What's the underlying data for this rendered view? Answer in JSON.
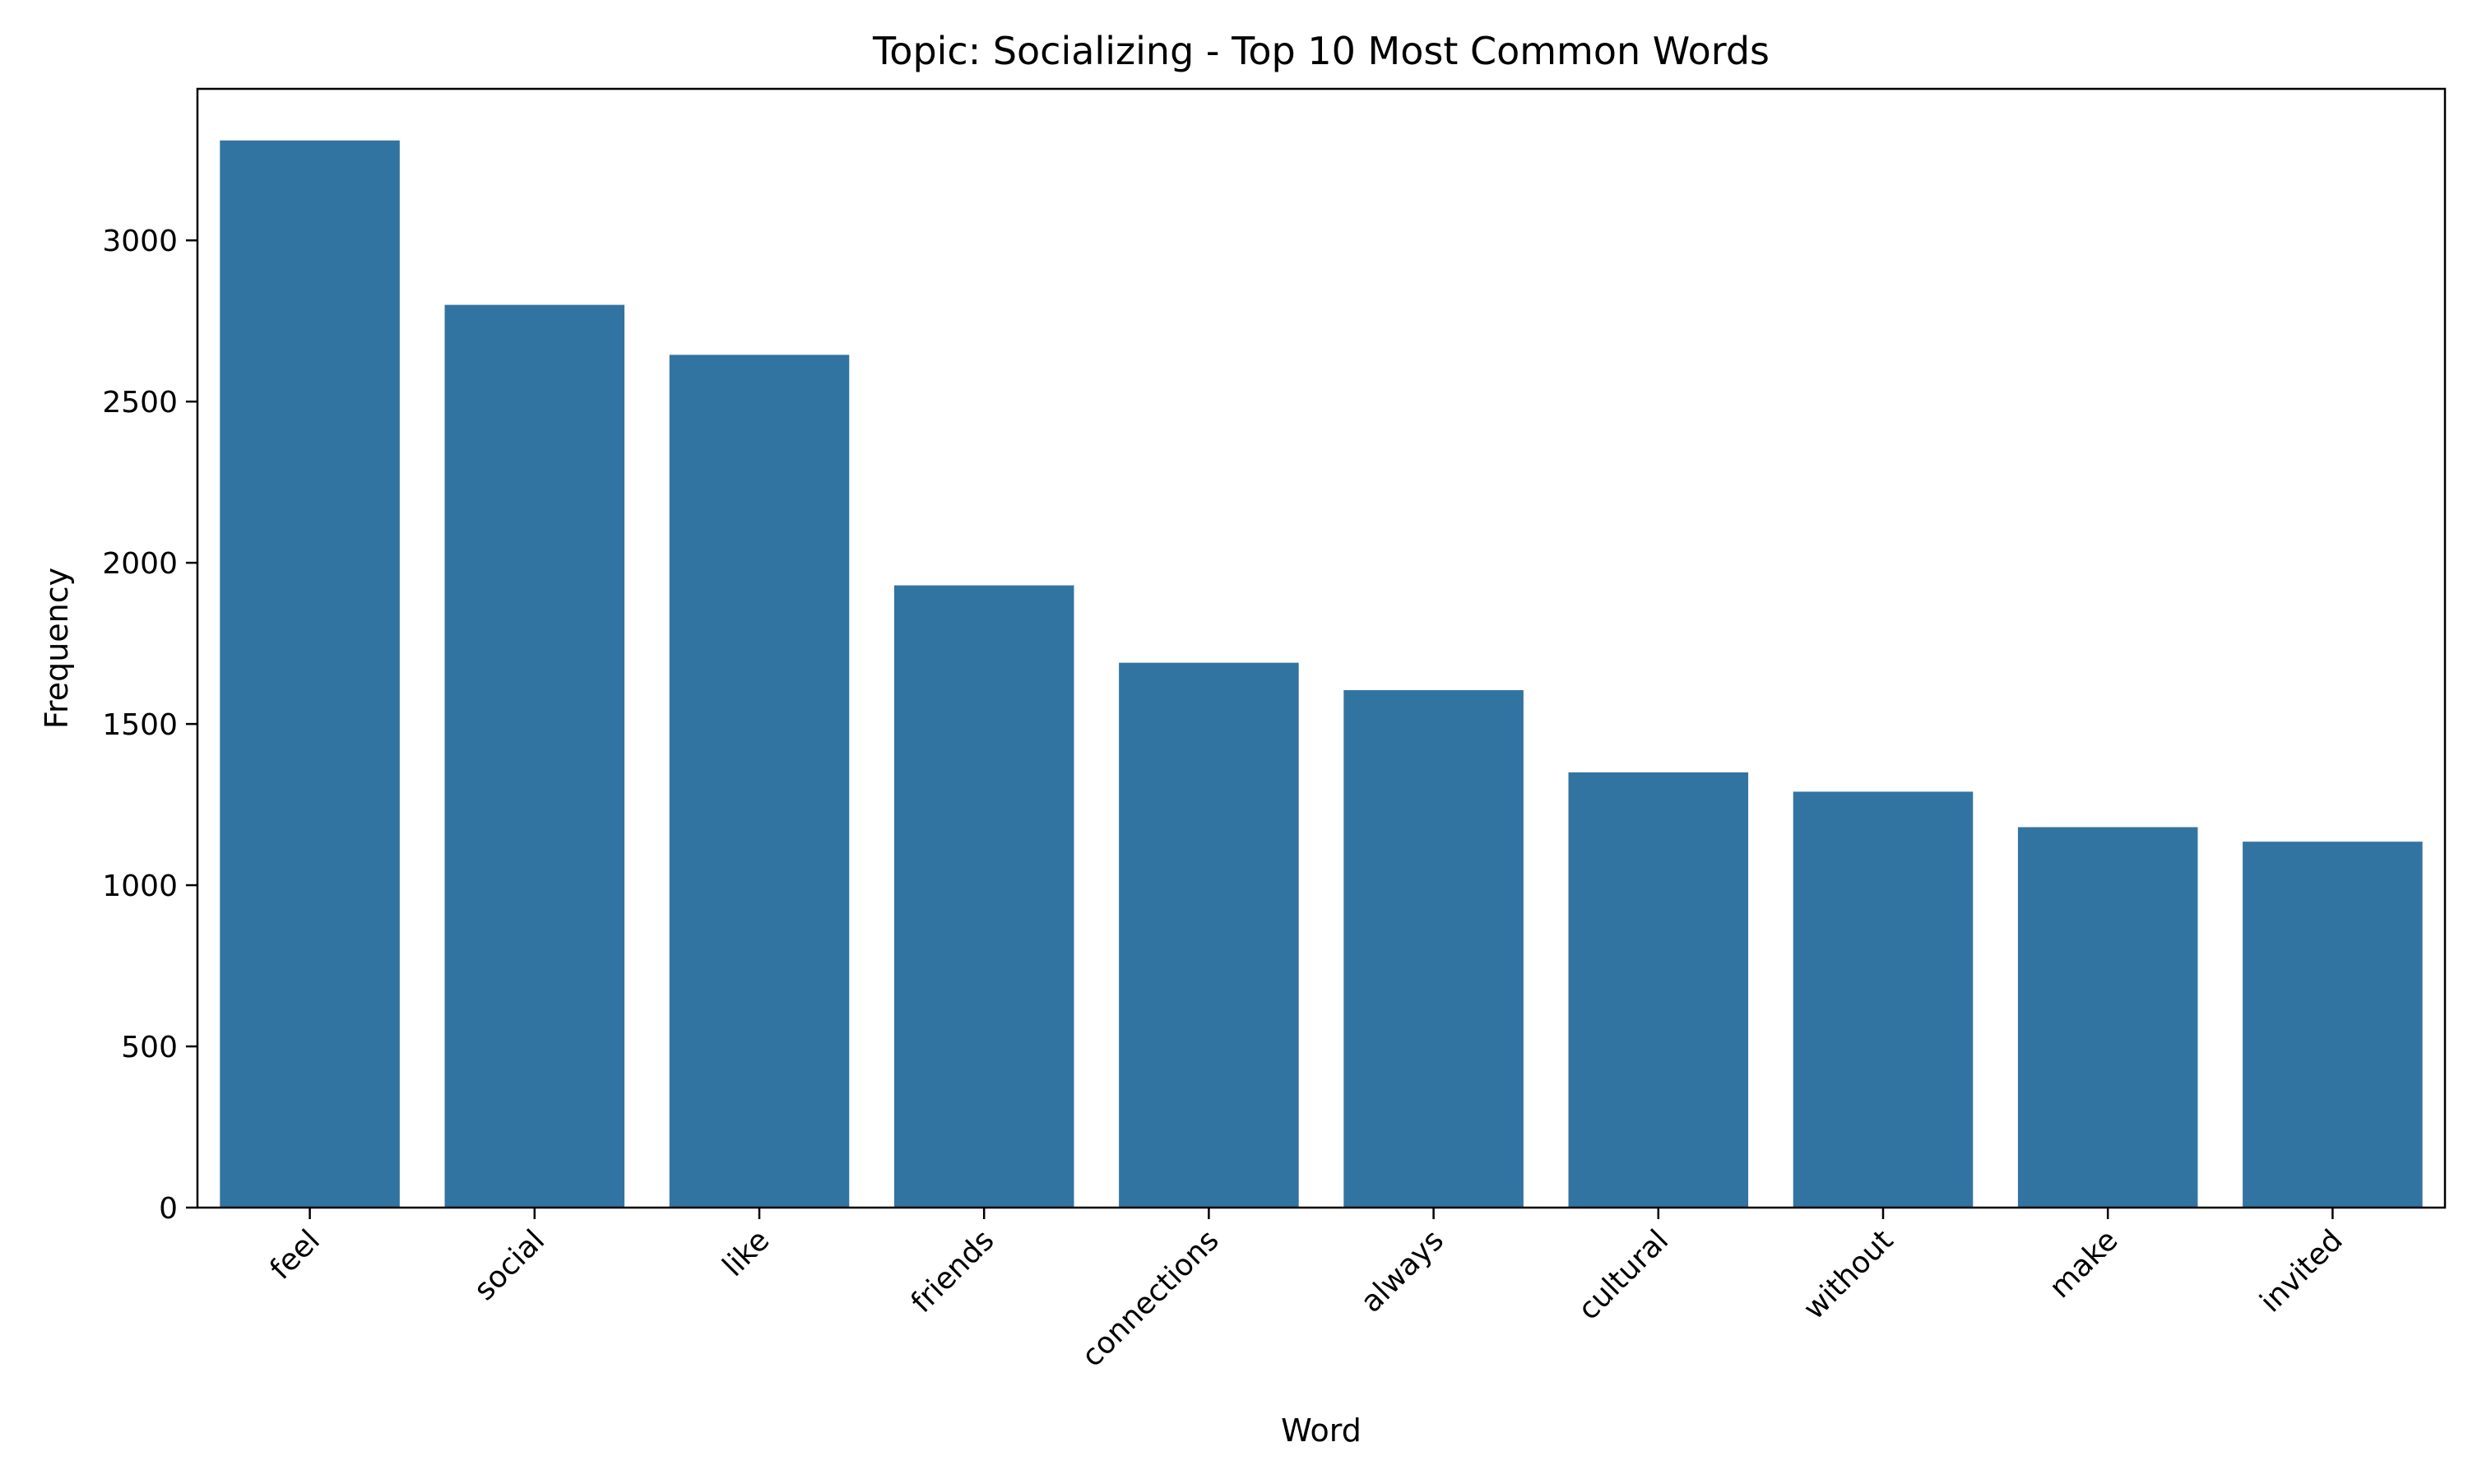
{
  "chart_data": {
    "type": "bar",
    "title": "Topic: Socializing - Top 10 Most Common Words",
    "xlabel": "Word",
    "ylabel": "Frequency",
    "categories": [
      "feel",
      "social",
      "like",
      "friends",
      "connections",
      "always",
      "cultural",
      "without",
      "make",
      "invited"
    ],
    "values": [
      3310,
      2800,
      2645,
      1930,
      1690,
      1605,
      1350,
      1290,
      1180,
      1135
    ],
    "ylim": [
      0,
      3470
    ],
    "yticks": [
      0,
      500,
      1000,
      1500,
      2000,
      2500,
      3000
    ],
    "grid": false,
    "legend": "none",
    "bar_color": "#3274a1",
    "xtick_rotation_deg": 45
  }
}
